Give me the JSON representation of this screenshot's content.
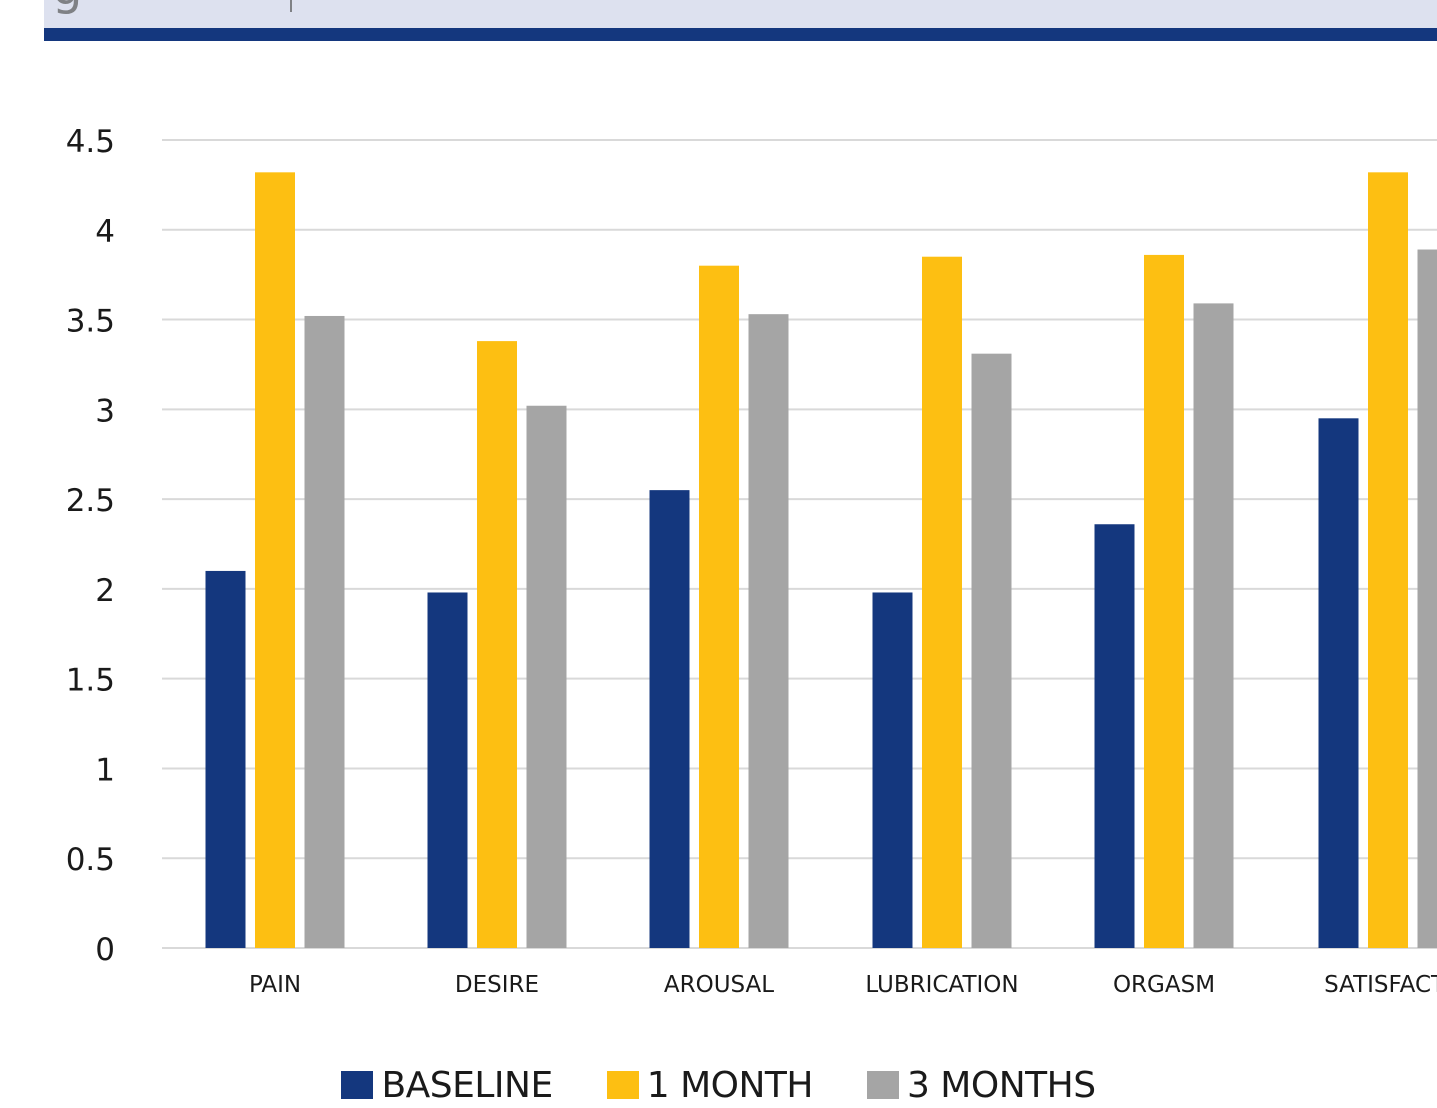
{
  "header": {
    "glyph": "g",
    "band_color": "#dde1ef",
    "rule_color": "#14377e"
  },
  "chart_data": {
    "type": "bar",
    "categories": [
      "PAIN",
      "DESIRE",
      "AROUSAL",
      "LUBRICATION",
      "ORGASM",
      "SATISFACTI"
    ],
    "series": [
      {
        "name": "BASELINE",
        "color": "#14377e",
        "values": [
          2.1,
          1.98,
          2.55,
          1.98,
          2.36,
          2.95
        ]
      },
      {
        "name": "1 MONTH",
        "color": "#fdbf12",
        "values": [
          4.32,
          3.38,
          3.8,
          3.85,
          3.86,
          4.32
        ]
      },
      {
        "name": "3 MONTHS",
        "color": "#a5a5a5",
        "values": [
          3.52,
          3.02,
          3.53,
          3.31,
          3.59,
          3.89
        ]
      }
    ],
    "y_ticks": [
      "0",
      "0.5",
      "1",
      "1.5",
      "2",
      "2.5",
      "3",
      "3.5",
      "4",
      "4.5"
    ],
    "ylim": [
      0,
      4.5
    ],
    "grid": true,
    "legend_position": "bottom-center",
    "gridline_color": "#d9d9d9"
  }
}
